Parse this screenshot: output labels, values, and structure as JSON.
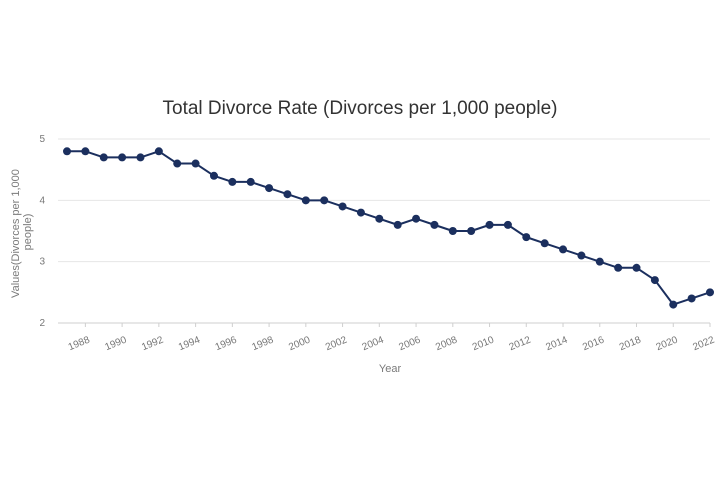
{
  "chart_data": {
    "type": "line",
    "title": "Total Divorce Rate (Divorces per 1,000 people)",
    "xlabel": "Year",
    "ylabel": "Values(Divorces per 1,000 people)",
    "ylabel_lines": [
      "Values(Divorces per 1,000",
      "people)"
    ],
    "ylim": [
      2,
      5
    ],
    "yticks": [
      2,
      3,
      4,
      5
    ],
    "xlim": [
      1987,
      2022
    ],
    "xticks": [
      1988,
      1990,
      1992,
      1994,
      1996,
      1998,
      2000,
      2002,
      2004,
      2006,
      2008,
      2010,
      2012,
      2014,
      2016,
      2018,
      2020,
      2022
    ],
    "grid": true,
    "legend": "none",
    "line_color": "#1b2f5e",
    "series": [
      {
        "x": [
          1987,
          1988,
          1989,
          1990,
          1991,
          1992,
          1993,
          1994,
          1995,
          1996,
          1997,
          1998,
          1999,
          2000,
          2001,
          2002,
          2003,
          2004,
          2005,
          2006,
          2007,
          2008,
          2009,
          2010,
          2011,
          2012,
          2013,
          2014,
          2015,
          2016,
          2017,
          2018,
          2019,
          2020,
          2021,
          2022
        ],
        "values": [
          4.8,
          4.8,
          4.7,
          4.7,
          4.7,
          4.8,
          4.6,
          4.6,
          4.4,
          4.3,
          4.3,
          4.2,
          4.1,
          4.0,
          4.0,
          3.9,
          3.8,
          3.7,
          3.6,
          3.7,
          3.6,
          3.5,
          3.5,
          3.6,
          3.6,
          3.4,
          3.3,
          3.2,
          3.1,
          3.0,
          2.9,
          2.9,
          2.7,
          2.3,
          2.4,
          2.5
        ]
      }
    ]
  }
}
